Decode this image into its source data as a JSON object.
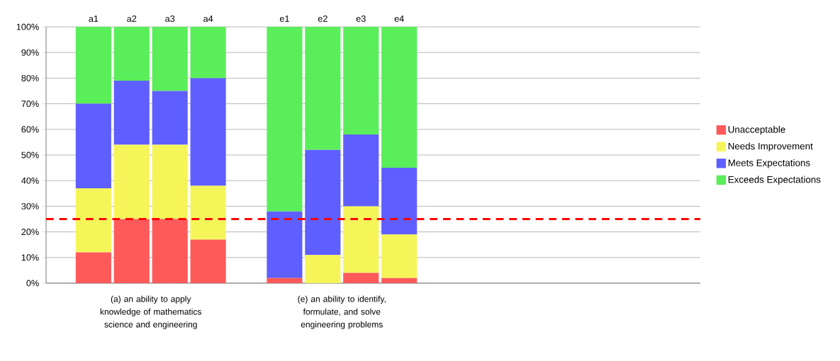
{
  "chart_data": {
    "type": "bar",
    "stacked": true,
    "categories": [
      "a1",
      "a2",
      "a3",
      "a4",
      null,
      "e1",
      "e2",
      "e3",
      "e4"
    ],
    "series": [
      {
        "name": "Unacceptable",
        "color": "#ff5a5a",
        "values": [
          12,
          25,
          25,
          17,
          null,
          2,
          0,
          4,
          2
        ]
      },
      {
        "name": "Needs Improvement",
        "color": "#f5f55a",
        "values": [
          25,
          29,
          29,
          21,
          null,
          0,
          11,
          26,
          17
        ]
      },
      {
        "name": "Meets Expectations",
        "color": "#5f5fff",
        "values": [
          33,
          25,
          21,
          42,
          null,
          26,
          41,
          28,
          26
        ]
      },
      {
        "name": "Exceeds Expectations",
        "color": "#5aee5a",
        "values": [
          30,
          21,
          25,
          20,
          null,
          72,
          48,
          42,
          55
        ]
      }
    ],
    "ylim": [
      0,
      100
    ],
    "yticks": [
      {
        "value": 0,
        "label": "0%"
      },
      {
        "value": 10,
        "label": "10%"
      },
      {
        "value": 20,
        "label": "20%"
      },
      {
        "value": 30,
        "label": "30%"
      },
      {
        "value": 40,
        "label": "40%"
      },
      {
        "value": 50,
        "label": "50%"
      },
      {
        "value": 60,
        "label": "60%"
      },
      {
        "value": 70,
        "label": "70%"
      },
      {
        "value": 80,
        "label": "80%"
      },
      {
        "value": 90,
        "label": "90%"
      },
      {
        "value": 100,
        "label": "100%"
      }
    ],
    "grid": "y",
    "legend": "right",
    "ref_lines": [
      {
        "axis": "y",
        "value": 25,
        "color": "#ff0000",
        "line_style": "dashed"
      }
    ],
    "annotations": [
      "(a) an ability to apply knowledge of mathematics science and engineering",
      "(e) an ability to identify, formulate, and solve engineering problems"
    ]
  }
}
